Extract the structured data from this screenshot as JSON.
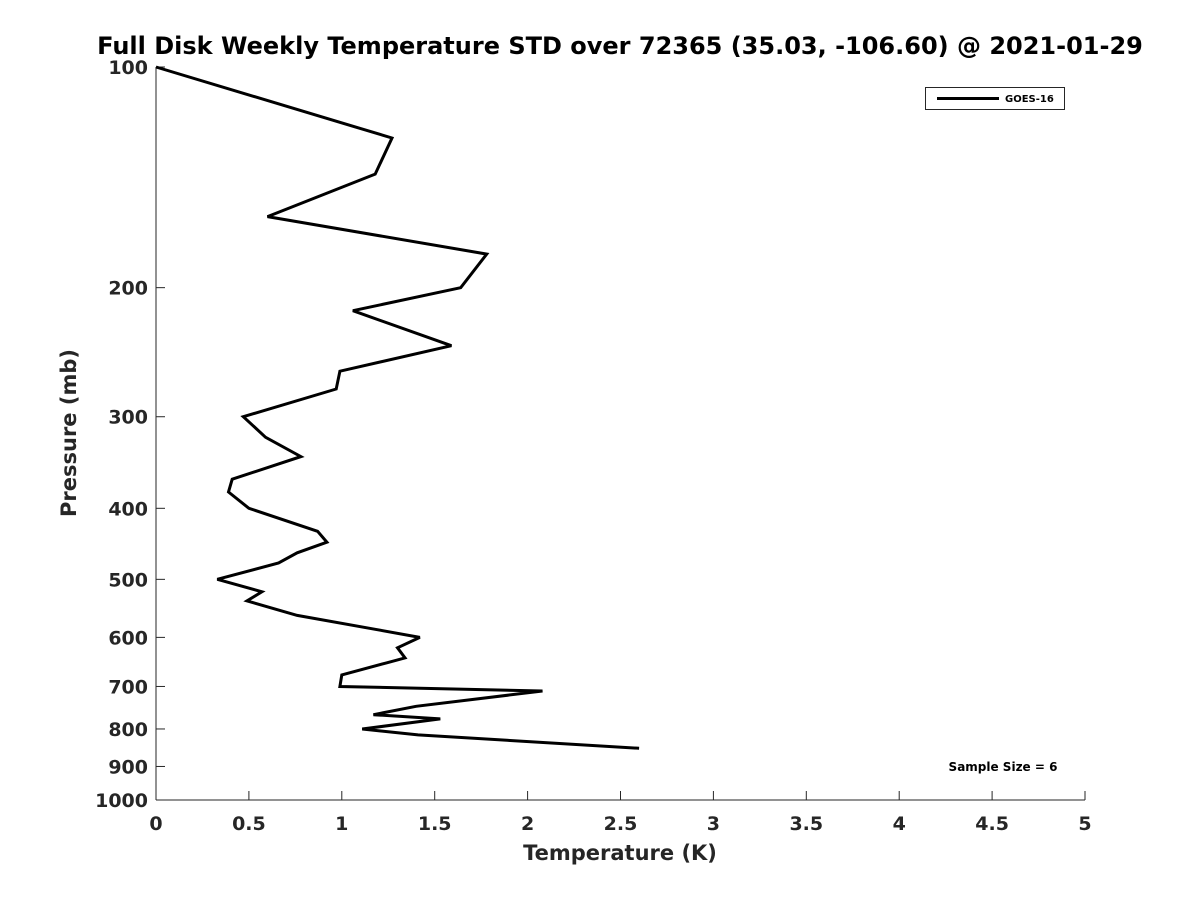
{
  "chart_data": {
    "type": "line",
    "title": "Full Disk Weekly Temperature STD over 72365 (35.03, -106.60) @ 2021-01-29",
    "xlabel": "Temperature (K)",
    "ylabel": "Pressure (mb)",
    "xlim": [
      0,
      5
    ],
    "ylim": [
      1000,
      100
    ],
    "y_scale": "log",
    "y_reversed": true,
    "x_ticks": [
      "0",
      "0.5",
      "1",
      "1.5",
      "2",
      "2.5",
      "3",
      "3.5",
      "4",
      "4.5",
      "5"
    ],
    "y_ticks": [
      "100",
      "200",
      "300",
      "400",
      "500",
      "600",
      "700",
      "800",
      "900",
      "1000"
    ],
    "legend_position": "top-right",
    "grid": false,
    "annotation": "Sample Size = 6",
    "series": [
      {
        "name": "GOES-16",
        "color": "#000000",
        "points": [
          {
            "x": 0.0,
            "y": 100
          },
          {
            "x": 1.27,
            "y": 125
          },
          {
            "x": 1.18,
            "y": 140
          },
          {
            "x": 0.6,
            "y": 160
          },
          {
            "x": 1.78,
            "y": 180
          },
          {
            "x": 1.64,
            "y": 200
          },
          {
            "x": 1.06,
            "y": 215
          },
          {
            "x": 1.59,
            "y": 240
          },
          {
            "x": 0.99,
            "y": 260
          },
          {
            "x": 0.97,
            "y": 275
          },
          {
            "x": 0.47,
            "y": 300
          },
          {
            "x": 0.59,
            "y": 320
          },
          {
            "x": 0.78,
            "y": 340
          },
          {
            "x": 0.41,
            "y": 365
          },
          {
            "x": 0.39,
            "y": 380
          },
          {
            "x": 0.5,
            "y": 400
          },
          {
            "x": 0.87,
            "y": 430
          },
          {
            "x": 0.92,
            "y": 445
          },
          {
            "x": 0.76,
            "y": 460
          },
          {
            "x": 0.66,
            "y": 475
          },
          {
            "x": 0.33,
            "y": 500
          },
          {
            "x": 0.57,
            "y": 520
          },
          {
            "x": 0.49,
            "y": 535
          },
          {
            "x": 0.76,
            "y": 560
          },
          {
            "x": 1.18,
            "y": 585
          },
          {
            "x": 1.42,
            "y": 600
          },
          {
            "x": 1.3,
            "y": 620
          },
          {
            "x": 1.34,
            "y": 640
          },
          {
            "x": 1.24,
            "y": 650
          },
          {
            "x": 1.0,
            "y": 675
          },
          {
            "x": 0.99,
            "y": 700
          },
          {
            "x": 2.08,
            "y": 710
          },
          {
            "x": 1.4,
            "y": 745
          },
          {
            "x": 1.17,
            "y": 765
          },
          {
            "x": 1.53,
            "y": 775
          },
          {
            "x": 1.11,
            "y": 800
          },
          {
            "x": 1.41,
            "y": 815
          },
          {
            "x": 2.6,
            "y": 850
          }
        ]
      }
    ]
  }
}
